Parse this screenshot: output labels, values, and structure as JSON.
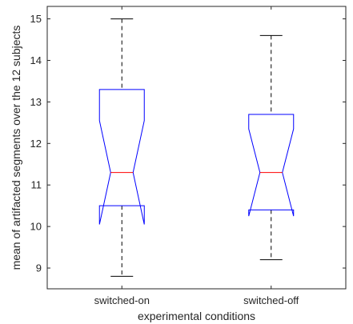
{
  "chart_data": {
    "type": "boxplot",
    "notched": true,
    "title": "",
    "xlabel": "experimental conditions",
    "ylabel": "mean of artifacted segments over the 12 subjects",
    "ylim": [
      8.5,
      15.3
    ],
    "yticks": [
      9,
      10,
      11,
      12,
      13,
      14,
      15
    ],
    "grid": false,
    "categories": [
      "switched-on",
      "switched-off"
    ],
    "boxes": [
      {
        "category": "switched-on",
        "whisker_low": 8.8,
        "q1": 10.5,
        "median": 11.3,
        "q3": 13.3,
        "whisker_high": 15.0,
        "notch_low": 10.05,
        "notch_high": 12.55
      },
      {
        "category": "switched-off",
        "whisker_low": 9.2,
        "q1": 10.4,
        "median": 11.3,
        "q3": 12.7,
        "whisker_high": 14.6,
        "notch_low": 10.25,
        "notch_high": 12.35
      }
    ],
    "colors": {
      "box": "#0000ff",
      "median": "#ff0000",
      "whisker": "#000000",
      "axis": "#262626"
    }
  }
}
